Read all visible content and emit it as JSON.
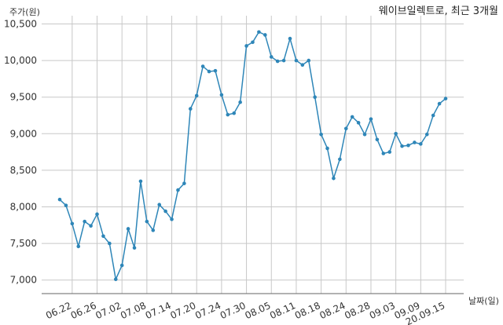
{
  "chart_data": {
    "type": "line",
    "title": "웨이브일렉트로, 최근 3개월",
    "xlabel": "날짜(일)",
    "ylabel": "주가(원)",
    "ylim": [
      6900,
      10600
    ],
    "y_ticks": [
      7000,
      7500,
      8000,
      8500,
      9000,
      9500,
      10000,
      10500
    ],
    "y_tick_labels": [
      "7,000",
      "7,500",
      "8,000",
      "8,500",
      "9,000",
      "9,500",
      "10,000",
      "10,500"
    ],
    "x_ticks": [
      "06.22",
      "06.26",
      "07.02",
      "07.08",
      "07.14",
      "07.20",
      "07.24",
      "07.30",
      "08.05",
      "08.11",
      "08.18",
      "08.24",
      "08.28",
      "09.03",
      "09.09",
      "20.09.15"
    ],
    "grid": true,
    "color": "#2e86b8",
    "series": [
      {
        "values": [
          8100,
          8020,
          7770,
          7460,
          7800,
          7740,
          7900,
          7600,
          7500,
          7010,
          7200,
          7700,
          7440,
          8350,
          7800,
          7680,
          8030,
          7940,
          7830,
          8230,
          8320,
          9340,
          9520,
          9920,
          9850,
          9860,
          9530,
          9260,
          9280,
          9430,
          10200,
          10250,
          10390,
          10350,
          10050,
          9990,
          10000,
          10300,
          10000,
          9940,
          10000,
          9500,
          8990,
          8800,
          8390,
          8650,
          9070,
          9230,
          9150,
          8990,
          9200,
          8920,
          8730,
          8750,
          9000,
          8830,
          8840,
          8880,
          8860,
          8990,
          9250,
          9410,
          9480
        ]
      }
    ]
  }
}
